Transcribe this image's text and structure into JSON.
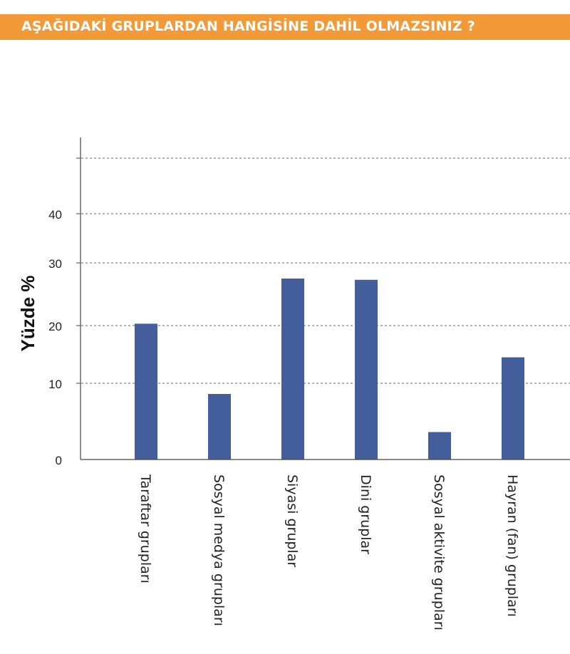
{
  "header": {
    "title": "AŞAĞIDAKİ GRUPLARDAN HANGİSİNE DAHİL OLMAZSINIZ ?",
    "bar_color": "#f29a38"
  },
  "chart_data": {
    "type": "bar",
    "title": "",
    "xlabel": "",
    "ylabel": "Yüzde %",
    "categories": [
      "Taraftar grupları",
      "Sosyal medya grupları",
      "Siyasi gruplar",
      "Dini gruplar",
      "Sosyal aktivite grupları",
      "Hayran (fan) grupları"
    ],
    "values": [
      20.3,
      8.6,
      27.5,
      27.3,
      3.6,
      14.5
    ],
    "yticks": [
      0,
      10,
      20,
      30,
      40
    ],
    "ylim": [
      0,
      50
    ],
    "grid": true,
    "bar_color": "#445e9b"
  }
}
